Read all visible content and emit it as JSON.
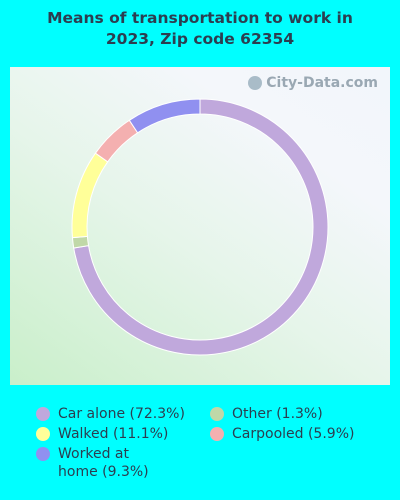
{
  "title_line1": "Means of transportation to work in",
  "title_line2": "2023, Zip code 62354",
  "watermark": "City-Data.com",
  "colors": {
    "background": "#00ffff",
    "car_alone": "#c0a8dc",
    "walked": "#ffff99",
    "worked_at_home": "#9090f0",
    "other": "#c0d8a8",
    "carpooled": "#f4b0b0"
  },
  "chart_data": {
    "type": "pie",
    "subtype": "donut",
    "title": "Means of transportation to work in 2023, Zip code 62354",
    "slices": [
      {
        "label": "Car alone",
        "value": 72.3,
        "color": "#c0a8dc"
      },
      {
        "label": "Other",
        "value": 1.3,
        "color": "#c0d8a8"
      },
      {
        "label": "Walked",
        "value": 11.1,
        "color": "#ffff99"
      },
      {
        "label": "Carpooled",
        "value": 5.9,
        "color": "#f4b0b0"
      },
      {
        "label": "Worked at home",
        "value": 9.3,
        "color": "#9090f0"
      }
    ]
  },
  "legend": [
    {
      "label": "Car alone (72.3%)",
      "color": "#c0a8dc"
    },
    {
      "label": "Other (1.3%)",
      "color": "#c0d8a8"
    },
    {
      "label": "Walked (11.1%)",
      "color": "#ffff99"
    },
    {
      "label": "Carpooled (5.9%)",
      "color": "#f4b0b0"
    },
    {
      "label": "Worked at home (9.3%)",
      "color": "#9090f0"
    }
  ]
}
